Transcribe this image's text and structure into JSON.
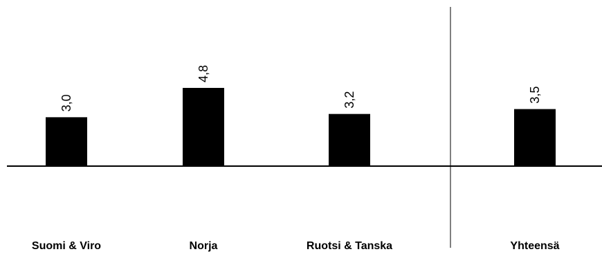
{
  "chart_data": {
    "type": "bar",
    "categories": [
      "Suomi & Viro",
      "Norja",
      "Ruotsi & Tanska",
      "Yhteensä"
    ],
    "values": [
      3.0,
      4.8,
      3.2,
      3.5
    ],
    "value_labels": [
      "3,0",
      "4,8",
      "3,2",
      "3,5"
    ],
    "title": "",
    "xlabel": "",
    "ylabel": "",
    "ylim": [
      0,
      5.3
    ],
    "grid": false,
    "legend": "none",
    "separator_before_last": true,
    "colors": {
      "bar": "#000000",
      "axis": "#000000",
      "text": "#000000",
      "background": "#ffffff"
    }
  }
}
